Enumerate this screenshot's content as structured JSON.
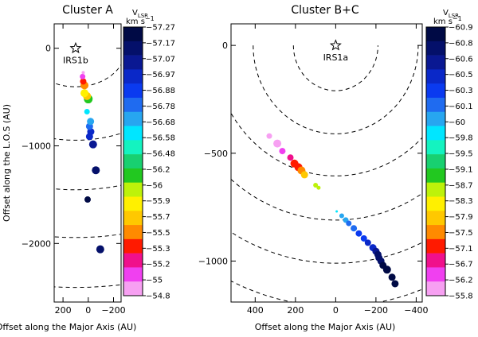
{
  "figure": {
    "ylabel": "Offset along the L.O.S (AU)",
    "xlabel_shared": "Offset along the Major Axis (AU)",
    "colorbar_label_main": "V",
    "colorbar_label_sub": "LSR",
    "colorbar_units": "km s",
    "colorbar_units_exp": "−1"
  },
  "chart_data": [
    {
      "type": "scatter",
      "title": "Cluster A",
      "xlabel": "Offset along the Major Axis (AU)",
      "ylabel": "Offset along the L.O.S (AU)",
      "xlim": [
        270,
        -260
      ],
      "ylim": [
        -2600,
        250
      ],
      "xticks": [
        200,
        0,
        -200
      ],
      "xtick_labels": [
        "200",
        "0",
        "−200"
      ],
      "yticks": [
        0,
        -1000,
        -2000
      ],
      "ytick_labels": [
        "0",
        "−1000",
        "−2000"
      ],
      "star": {
        "label": "IRS1b",
        "x": 100,
        "y": 0
      },
      "arcs": [
        {
          "radius": 400
        },
        {
          "radius": 950
        },
        {
          "radius": 1450
        },
        {
          "radius": 1950
        },
        {
          "radius": 2450
        }
      ],
      "colorbar": {
        "labels": [
          "−57.27",
          "−57.17",
          "−57.07",
          "−56.97",
          "−56.88",
          "−56.78",
          "−56.68",
          "−56.58",
          "−56.48",
          "−56.2",
          "−56",
          "−55.9",
          "−55.7",
          "−55.5",
          "−55.3",
          "−55.2",
          "−55",
          "−54.8"
        ],
        "colors": [
          "#000a45",
          "#04106a",
          "#0a1892",
          "#0a28c8",
          "#0a3af0",
          "#1f6bf0",
          "#27a6f0",
          "#00e6ff",
          "#14f3c0",
          "#18d070",
          "#22c820",
          "#bdf20a",
          "#fff000",
          "#ffc800",
          "#ff8a00",
          "#ff1a00",
          "#f0108c",
          "#f040f0",
          "#f7a0f2"
        ]
      },
      "points": [
        {
          "x": 5,
          "y": -1550,
          "size": 4.0,
          "color": "#000a45"
        },
        {
          "x": -95,
          "y": -2060,
          "size": 5.0,
          "color": "#04106a"
        },
        {
          "x": -60,
          "y": -1250,
          "size": 5.0,
          "color": "#04106a"
        },
        {
          "x": -38,
          "y": -985,
          "size": 5.0,
          "color": "#0a1892"
        },
        {
          "x": -10,
          "y": -905,
          "size": 4.5,
          "color": "#0a28c8"
        },
        {
          "x": -20,
          "y": -855,
          "size": 4.5,
          "color": "#0a28c8"
        },
        {
          "x": -10,
          "y": -800,
          "size": 4.5,
          "color": "#1f6bf0"
        },
        {
          "x": -18,
          "y": -750,
          "size": 4.5,
          "color": "#27a6f0"
        },
        {
          "x": 10,
          "y": -650,
          "size": 3.5,
          "color": "#00e6ff"
        },
        {
          "x": 0,
          "y": -520,
          "size": 5.5,
          "color": "#22c820"
        },
        {
          "x": 10,
          "y": -490,
          "size": 5.0,
          "color": "#ffc800"
        },
        {
          "x": 30,
          "y": -460,
          "size": 5.0,
          "color": "#fff000"
        },
        {
          "x": 30,
          "y": -380,
          "size": 5.0,
          "color": "#ff8a00"
        },
        {
          "x": 40,
          "y": -340,
          "size": 4.0,
          "color": "#ff1a00"
        },
        {
          "x": 45,
          "y": -290,
          "size": 3.5,
          "color": "#f040f0"
        },
        {
          "x": 40,
          "y": -250,
          "size": 2.0,
          "color": "#f7a0f2"
        }
      ]
    },
    {
      "type": "scatter",
      "title": "Cluster B+C",
      "xlabel": "Offset along the Major Axis (AU)",
      "ylabel": "",
      "xlim": [
        520,
        -430
      ],
      "ylim": [
        -1190,
        100
      ],
      "xticks": [
        400,
        200,
        0,
        -200,
        -400
      ],
      "xtick_labels": [
        "400",
        "200",
        "0",
        "−200",
        "−400"
      ],
      "yticks": [
        0,
        -500,
        -1000
      ],
      "ytick_labels": [
        "0",
        "−500",
        "−1000"
      ],
      "star": {
        "label": "IRS1a",
        "x": 0,
        "y": 0
      },
      "arcs": [
        {
          "radius": 210
        },
        {
          "radius": 410
        },
        {
          "radius": 610
        },
        {
          "radius": 810
        },
        {
          "radius": 1010
        },
        {
          "radius": 1210
        }
      ],
      "colorbar": {
        "labels": [
          "−60.9",
          "−60.8",
          "−60.6",
          "−60.5",
          "−60.3",
          "−60.1",
          "−60",
          "−59.8",
          "−59.5",
          "−59.1",
          "−58.7",
          "−58.3",
          "−57.9",
          "−57.5",
          "−57.1",
          "−56.7",
          "−56.2",
          "−55.8"
        ],
        "colors": [
          "#000a45",
          "#04106a",
          "#0a1892",
          "#0a28c8",
          "#0a3af0",
          "#1f6bf0",
          "#27a6f0",
          "#00e6ff",
          "#14f3c0",
          "#18d070",
          "#22c820",
          "#bdf20a",
          "#fff000",
          "#ffc800",
          "#ff8a00",
          "#ff1a00",
          "#f0108c",
          "#f040f0",
          "#f7a0f2"
        ]
      },
      "points": [
        {
          "x": 330,
          "y": -420,
          "size": 3.5,
          "color": "#f7a0f2"
        },
        {
          "x": 290,
          "y": -455,
          "size": 5.0,
          "color": "#f7a0f2"
        },
        {
          "x": 265,
          "y": -490,
          "size": 4.0,
          "color": "#f040f0"
        },
        {
          "x": 225,
          "y": -520,
          "size": 4.0,
          "color": "#f0108c"
        },
        {
          "x": 205,
          "y": -548,
          "size": 5.0,
          "color": "#ff1a00"
        },
        {
          "x": 185,
          "y": -565,
          "size": 5.0,
          "color": "#ff1a00"
        },
        {
          "x": 170,
          "y": -580,
          "size": 5.0,
          "color": "#ff8a00"
        },
        {
          "x": 155,
          "y": -600,
          "size": 4.5,
          "color": "#ffc800"
        },
        {
          "x": 100,
          "y": -648,
          "size": 3.0,
          "color": "#bdf20a"
        },
        {
          "x": 85,
          "y": -660,
          "size": 2.5,
          "color": "#bdf20a"
        },
        {
          "x": -5,
          "y": -770,
          "size": 1.5,
          "color": "#00e6ff"
        },
        {
          "x": -30,
          "y": -790,
          "size": 3.0,
          "color": "#27a6f0"
        },
        {
          "x": -50,
          "y": -810,
          "size": 3.5,
          "color": "#27a6f0"
        },
        {
          "x": -65,
          "y": -825,
          "size": 3.5,
          "color": "#1f6bf0"
        },
        {
          "x": -90,
          "y": -848,
          "size": 4.0,
          "color": "#1f6bf0"
        },
        {
          "x": -115,
          "y": -872,
          "size": 4.0,
          "color": "#0a3af0"
        },
        {
          "x": -140,
          "y": -895,
          "size": 4.0,
          "color": "#0a3af0"
        },
        {
          "x": -160,
          "y": -915,
          "size": 4.0,
          "color": "#0a28c8"
        },
        {
          "x": -185,
          "y": -938,
          "size": 4.5,
          "color": "#0a28c8"
        },
        {
          "x": -200,
          "y": -955,
          "size": 4.5,
          "color": "#0a1892"
        },
        {
          "x": -210,
          "y": -970,
          "size": 4.5,
          "color": "#04106a"
        },
        {
          "x": -215,
          "y": -985,
          "size": 4.5,
          "color": "#04106a"
        },
        {
          "x": -225,
          "y": -1000,
          "size": 4.5,
          "color": "#04106a"
        },
        {
          "x": -235,
          "y": -1020,
          "size": 4.5,
          "color": "#000a45"
        },
        {
          "x": -255,
          "y": -1040,
          "size": 5.0,
          "color": "#000a45"
        },
        {
          "x": -280,
          "y": -1075,
          "size": 4.5,
          "color": "#000a45"
        },
        {
          "x": -295,
          "y": -1105,
          "size": 4.5,
          "color": "#000a45"
        }
      ]
    }
  ]
}
